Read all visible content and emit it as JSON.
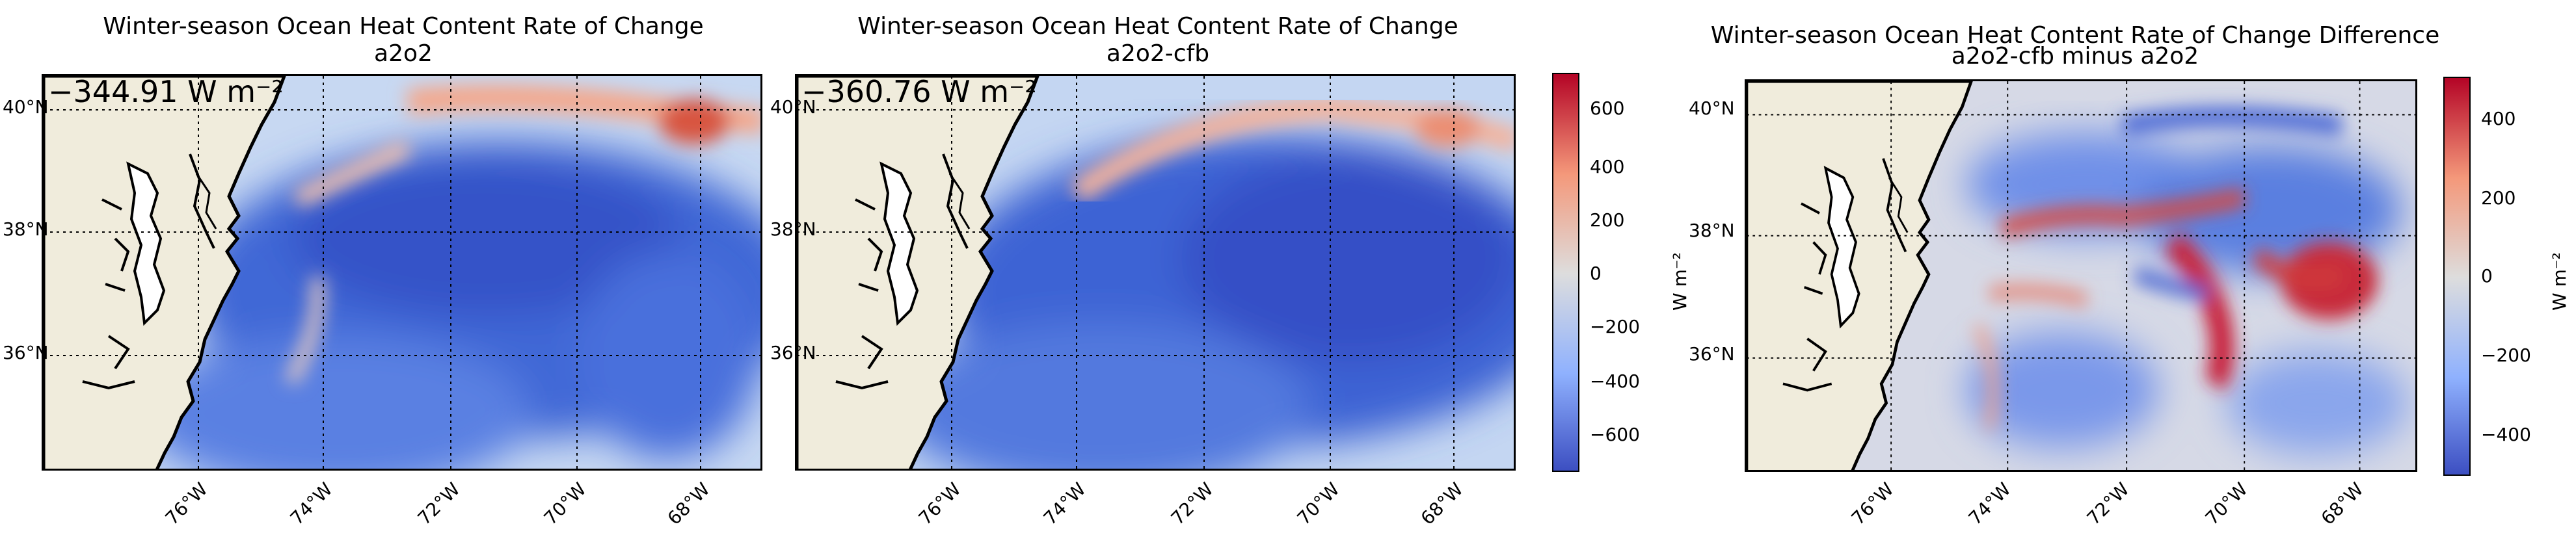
{
  "panels": [
    {
      "title_line1": "Winter-season Ocean Heat Content Rate of Change",
      "title_line2": "a2o2",
      "stat_text": "−344.91 W m⁻²",
      "lat_labels": [
        "40°N",
        "38°N",
        "36°N"
      ],
      "lon_labels": [
        "76°W",
        "74°W",
        "72°W",
        "70°W",
        "68°W"
      ]
    },
    {
      "title_line1": "Winter-season Ocean Heat Content Rate of Change",
      "title_line2": "a2o2-cfb",
      "stat_text": "−360.76 W m⁻²",
      "lat_labels": [
        "40°N",
        "38°N",
        "36°N"
      ],
      "lon_labels": [
        "76°W",
        "74°W",
        "72°W",
        "70°W",
        "68°W"
      ]
    },
    {
      "title_line1": "Winter-season Ocean Heat Content Rate of Change Difference",
      "title_line2": "a2o2-cfb minus a2o2",
      "lat_labels": [
        "40°N",
        "38°N",
        "36°N"
      ],
      "lon_labels": [
        "76°W",
        "74°W",
        "72°W",
        "70°W",
        "68°W"
      ]
    }
  ],
  "colorbars": [
    {
      "label": "W m⁻²",
      "ticks": [
        "600",
        "400",
        "200",
        "0",
        "−200",
        "−400",
        "−600"
      ]
    },
    {
      "label": "W m⁻²",
      "ticks": [
        "400",
        "200",
        "0",
        "−200",
        "−400"
      ]
    }
  ],
  "colors": {
    "land": "#f0ecdc",
    "coast": "#000000",
    "cmap_low": "#3a4cc0",
    "cmap_mid": "#dddddd",
    "cmap_high": "#b40426"
  }
}
